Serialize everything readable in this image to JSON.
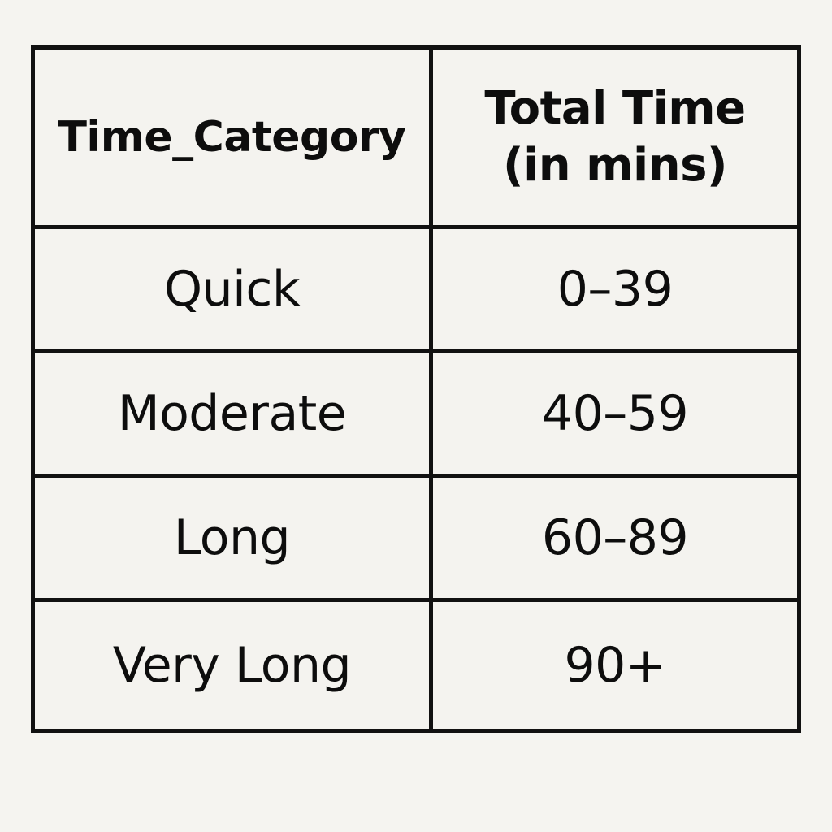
{
  "table": {
    "headers": [
      "Time_Category",
      "Total Time\n(in mins)"
    ],
    "rows": [
      [
        "Quick",
        "0–39"
      ],
      [
        "Moderate",
        "40–59"
      ],
      [
        "Long",
        "60–89"
      ],
      [
        "Very Long",
        "90+"
      ]
    ]
  }
}
